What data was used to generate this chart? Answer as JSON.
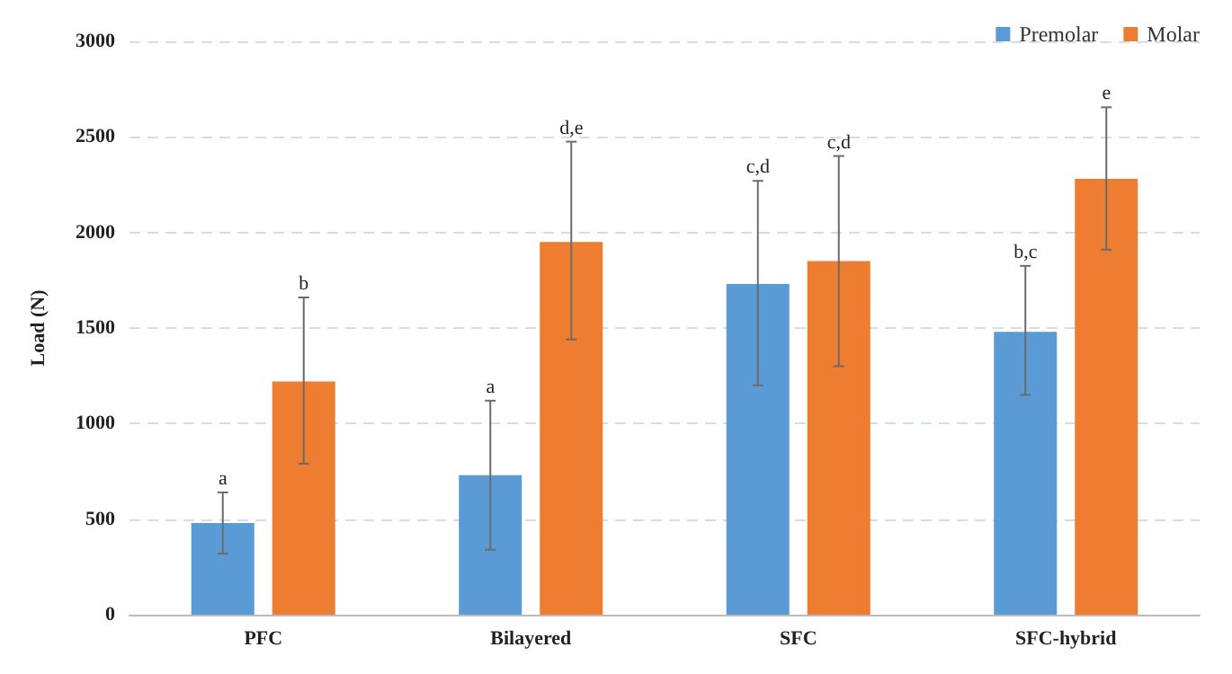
{
  "chart_data": {
    "type": "bar",
    "ylabel": "Load (N)",
    "categories": [
      "PFC",
      "Bilayered",
      "SFC",
      "SFC-hybrid"
    ],
    "series": [
      {
        "name": "Premolar",
        "color": "#5b9bd5",
        "values": [
          480,
          730,
          1730,
          1480
        ],
        "errors": [
          [
            320,
            640
          ],
          [
            340,
            1120
          ],
          [
            1200,
            2270
          ],
          [
            1150,
            1825
          ]
        ]
      },
      {
        "name": "Molar",
        "color": "#ed7d31",
        "values": [
          1220,
          1950,
          1850,
          2280
        ],
        "errors": [
          [
            790,
            1660
          ],
          [
            1440,
            2475
          ],
          [
            1300,
            2400
          ],
          [
            1910,
            2655
          ]
        ]
      }
    ],
    "ylim": [
      0,
      3000
    ],
    "yticks": [
      0,
      500,
      1000,
      1500,
      2000,
      2500,
      3000
    ],
    "grid": "y",
    "legend": "top right",
    "annotations": [
      "a",
      "b",
      "a",
      "d,e",
      "c,d",
      "c,d",
      "b,c",
      "e"
    ]
  }
}
